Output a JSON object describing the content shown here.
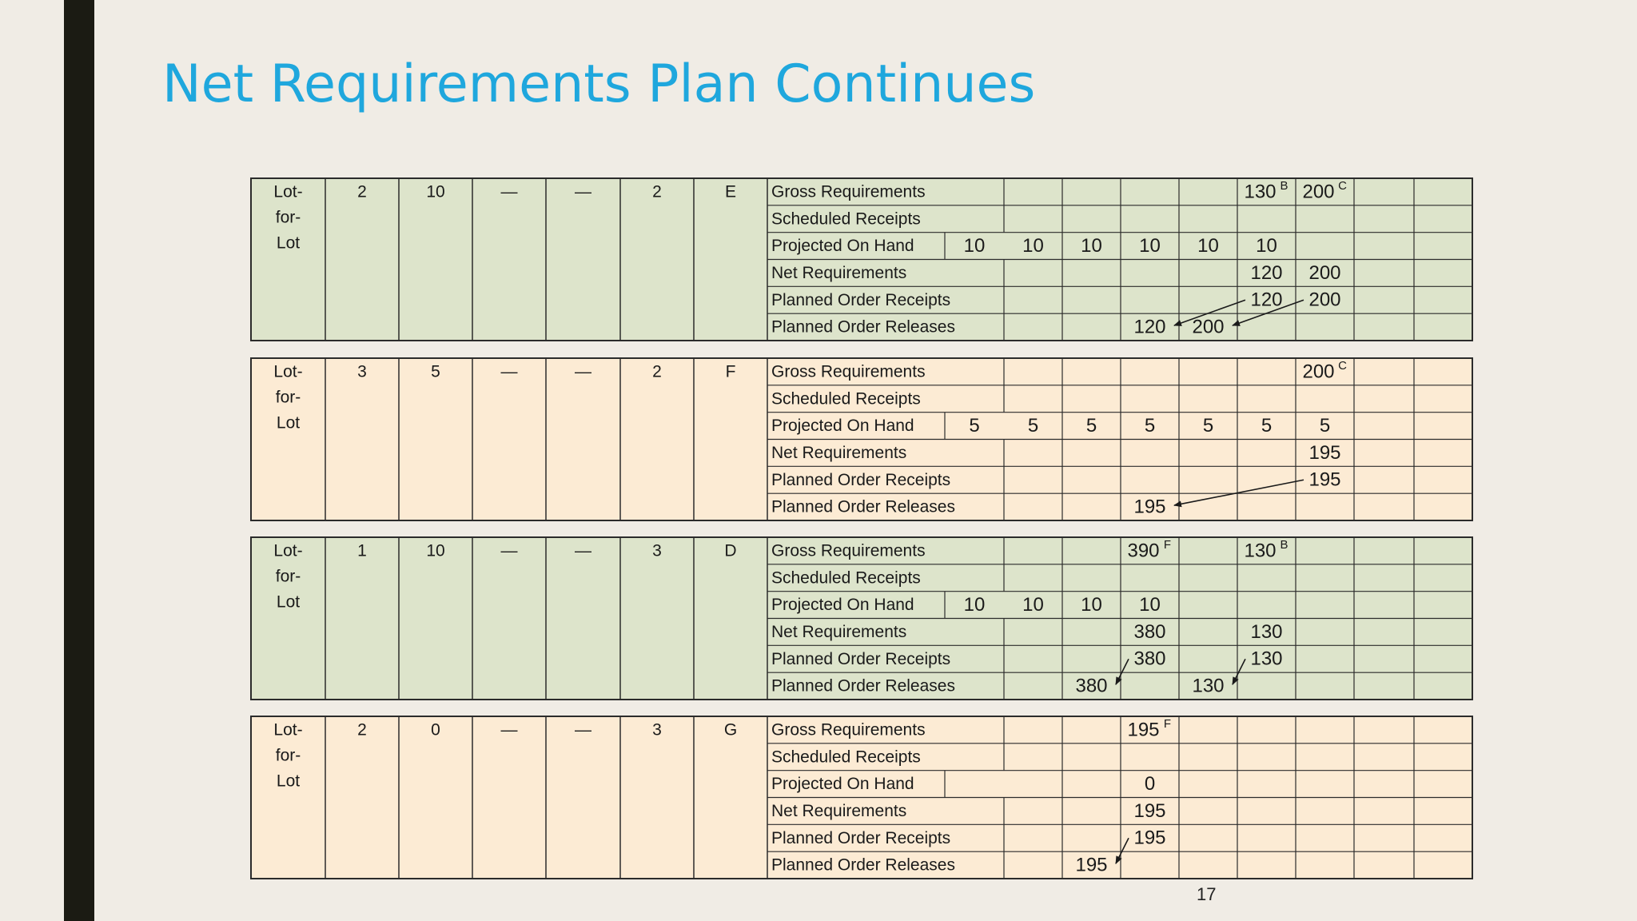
{
  "slide": {
    "title": "Net Requirements Plan Continues",
    "page_number": "17"
  },
  "colors": {
    "green_fill": "#dde4cb",
    "peach_fill": "#fcebd4",
    "grid_line": "#2b2b2b",
    "title_color": "#1fa7dd"
  },
  "row_labels": [
    "Gross Requirements",
    "Scheduled Receipts",
    "Projected On Hand",
    "Net Requirements",
    "Planned Order Receipts",
    "Planned Order Releases"
  ],
  "plans": [
    {
      "fill": "green",
      "lot_label": [
        "Lot-",
        "for-",
        "Lot"
      ],
      "params": [
        "2",
        "10",
        "—",
        "—",
        "2",
        "E"
      ],
      "on_hand_initial": "10",
      "grid": {
        "gross": [
          "",
          "",
          "",
          "",
          "130",
          "200",
          "",
          ""
        ],
        "gross_sup": [
          "",
          "",
          "",
          "",
          "B",
          "C",
          "",
          ""
        ],
        "sched": [
          "",
          "",
          "",
          "",
          "",
          "",
          "",
          ""
        ],
        "onhand": [
          "10",
          "10",
          "10",
          "10",
          "10",
          "",
          "",
          ""
        ],
        "net": [
          "",
          "",
          "",
          "",
          "120",
          "200",
          "",
          ""
        ],
        "por": [
          "",
          "",
          "",
          "",
          "120",
          "200",
          "",
          ""
        ],
        "porl": [
          "",
          "",
          "120",
          "200",
          "",
          "",
          "",
          ""
        ]
      },
      "arrows": [
        {
          "from": 4,
          "to": 2
        },
        {
          "from": 5,
          "to": 3
        }
      ]
    },
    {
      "fill": "peach",
      "lot_label": [
        "Lot-",
        "for-",
        "Lot"
      ],
      "params": [
        "3",
        "5",
        "—",
        "—",
        "2",
        "F"
      ],
      "on_hand_initial": "5",
      "grid": {
        "gross": [
          "",
          "",
          "",
          "",
          "",
          "200",
          "",
          ""
        ],
        "gross_sup": [
          "",
          "",
          "",
          "",
          "",
          "C",
          "",
          ""
        ],
        "sched": [
          "",
          "",
          "",
          "",
          "",
          "",
          "",
          ""
        ],
        "onhand": [
          "5",
          "5",
          "5",
          "5",
          "5",
          "5",
          "",
          ""
        ],
        "net": [
          "",
          "",
          "",
          "",
          "",
          "195",
          "",
          ""
        ],
        "por": [
          "",
          "",
          "",
          "",
          "",
          "195",
          "",
          ""
        ],
        "porl": [
          "",
          "",
          "195",
          "",
          "",
          "",
          "",
          ""
        ]
      },
      "arrows": [
        {
          "from": 5,
          "to": 2
        }
      ]
    },
    {
      "fill": "green",
      "lot_label": [
        "Lot-",
        "for-",
        "Lot"
      ],
      "params": [
        "1",
        "10",
        "—",
        "—",
        "3",
        "D"
      ],
      "on_hand_initial": "10",
      "grid": {
        "gross": [
          "",
          "",
          "390",
          "",
          "130",
          "",
          "",
          ""
        ],
        "gross_sup": [
          "",
          "",
          "F",
          "",
          "B",
          "",
          "",
          ""
        ],
        "sched": [
          "",
          "",
          "",
          "",
          "",
          "",
          "",
          ""
        ],
        "onhand": [
          "10",
          "10",
          "10",
          "",
          "",
          "",
          "",
          ""
        ],
        "net": [
          "",
          "",
          "380",
          "",
          "130",
          "",
          "",
          ""
        ],
        "por": [
          "",
          "",
          "380",
          "",
          "130",
          "",
          "",
          ""
        ],
        "porl": [
          "",
          "380",
          "",
          "130",
          "",
          "",
          "",
          ""
        ]
      },
      "arrows": [
        {
          "from": 2,
          "to": 1
        },
        {
          "from": 4,
          "to": 3
        }
      ]
    },
    {
      "fill": "peach",
      "lot_label": [
        "Lot-",
        "for-",
        "Lot"
      ],
      "params": [
        "2",
        "0",
        "—",
        "—",
        "3",
        "G"
      ],
      "on_hand_initial": "",
      "grid": {
        "gross": [
          "",
          "",
          "195",
          "",
          "",
          "",
          "",
          ""
        ],
        "gross_sup": [
          "",
          "",
          "F",
          "",
          "",
          "",
          "",
          ""
        ],
        "sched": [
          "",
          "",
          "",
          "",
          "",
          "",
          "",
          ""
        ],
        "onhand": [
          "",
          "",
          "0",
          "",
          "",
          "",
          "",
          ""
        ],
        "net": [
          "",
          "",
          "195",
          "",
          "",
          "",
          "",
          ""
        ],
        "por": [
          "",
          "",
          "195",
          "",
          "",
          "",
          "",
          ""
        ],
        "porl": [
          "",
          "195",
          "",
          "",
          "",
          "",
          "",
          ""
        ]
      },
      "arrows": [
        {
          "from": 2,
          "to": 1
        }
      ]
    }
  ]
}
